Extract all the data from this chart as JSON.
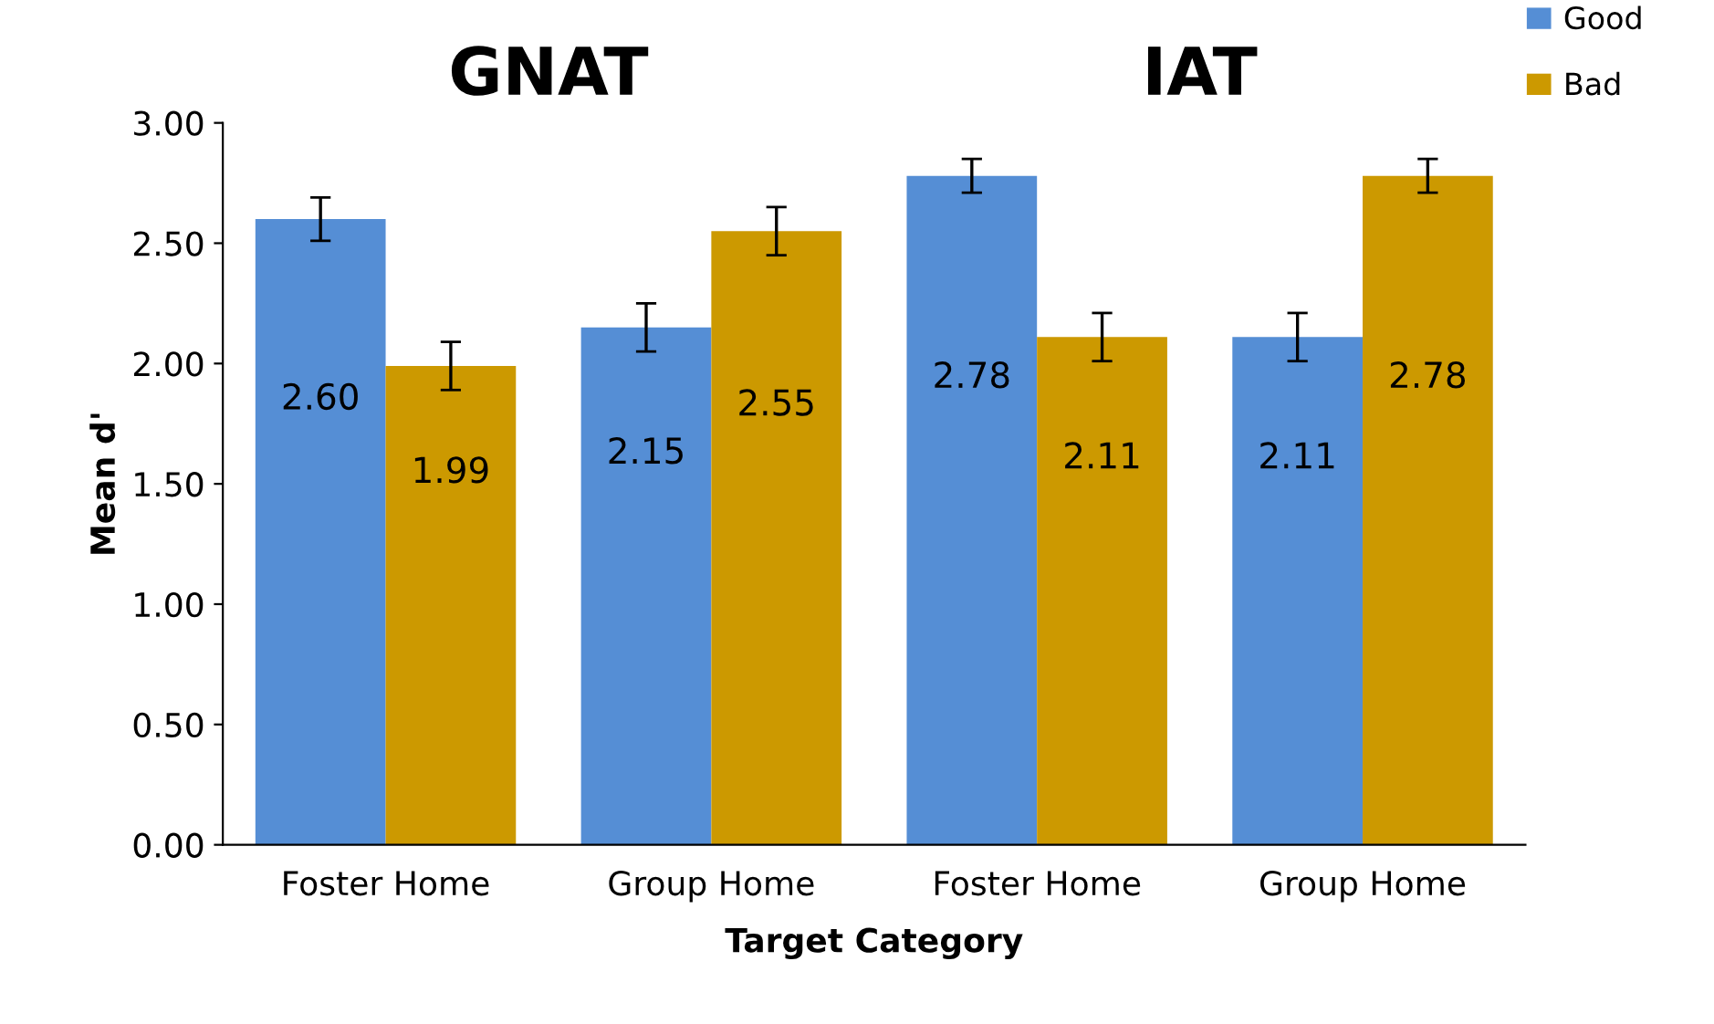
{
  "chart_data": {
    "type": "bar",
    "xlabel": "Target Category",
    "ylabel": "Mean d'",
    "annotations": [
      "GNAT",
      "IAT"
    ],
    "categories": [
      "Foster Home",
      "Group Home",
      "Foster Home",
      "Group Home"
    ],
    "series": [
      {
        "name": "Good",
        "color": "#558ed5",
        "values": [
          2.6,
          2.15,
          2.78,
          2.11
        ],
        "errors": [
          0.09,
          0.1,
          0.07,
          0.1
        ],
        "value_labels": [
          "2.60",
          "2.15",
          "2.78",
          "2.11"
        ]
      },
      {
        "name": "Bad",
        "color": "#cc9900",
        "values": [
          1.99,
          2.55,
          2.11,
          2.78
        ],
        "errors": [
          0.1,
          0.1,
          0.1,
          0.07
        ],
        "value_labels": [
          "1.99",
          "2.55",
          "2.11",
          "2.78"
        ]
      }
    ],
    "ylim": [
      0,
      3
    ],
    "yticks": [
      {
        "value": 0,
        "label": "0.00"
      },
      {
        "value": 0.5,
        "label": "0.50"
      },
      {
        "value": 1,
        "label": "1.00"
      },
      {
        "value": 1.5,
        "label": "1.50"
      },
      {
        "value": 2,
        "label": "2.00"
      },
      {
        "value": 2.5,
        "label": "2.50"
      },
      {
        "value": 3,
        "label": "3.00"
      }
    ],
    "legend": "top right",
    "grid": false
  }
}
